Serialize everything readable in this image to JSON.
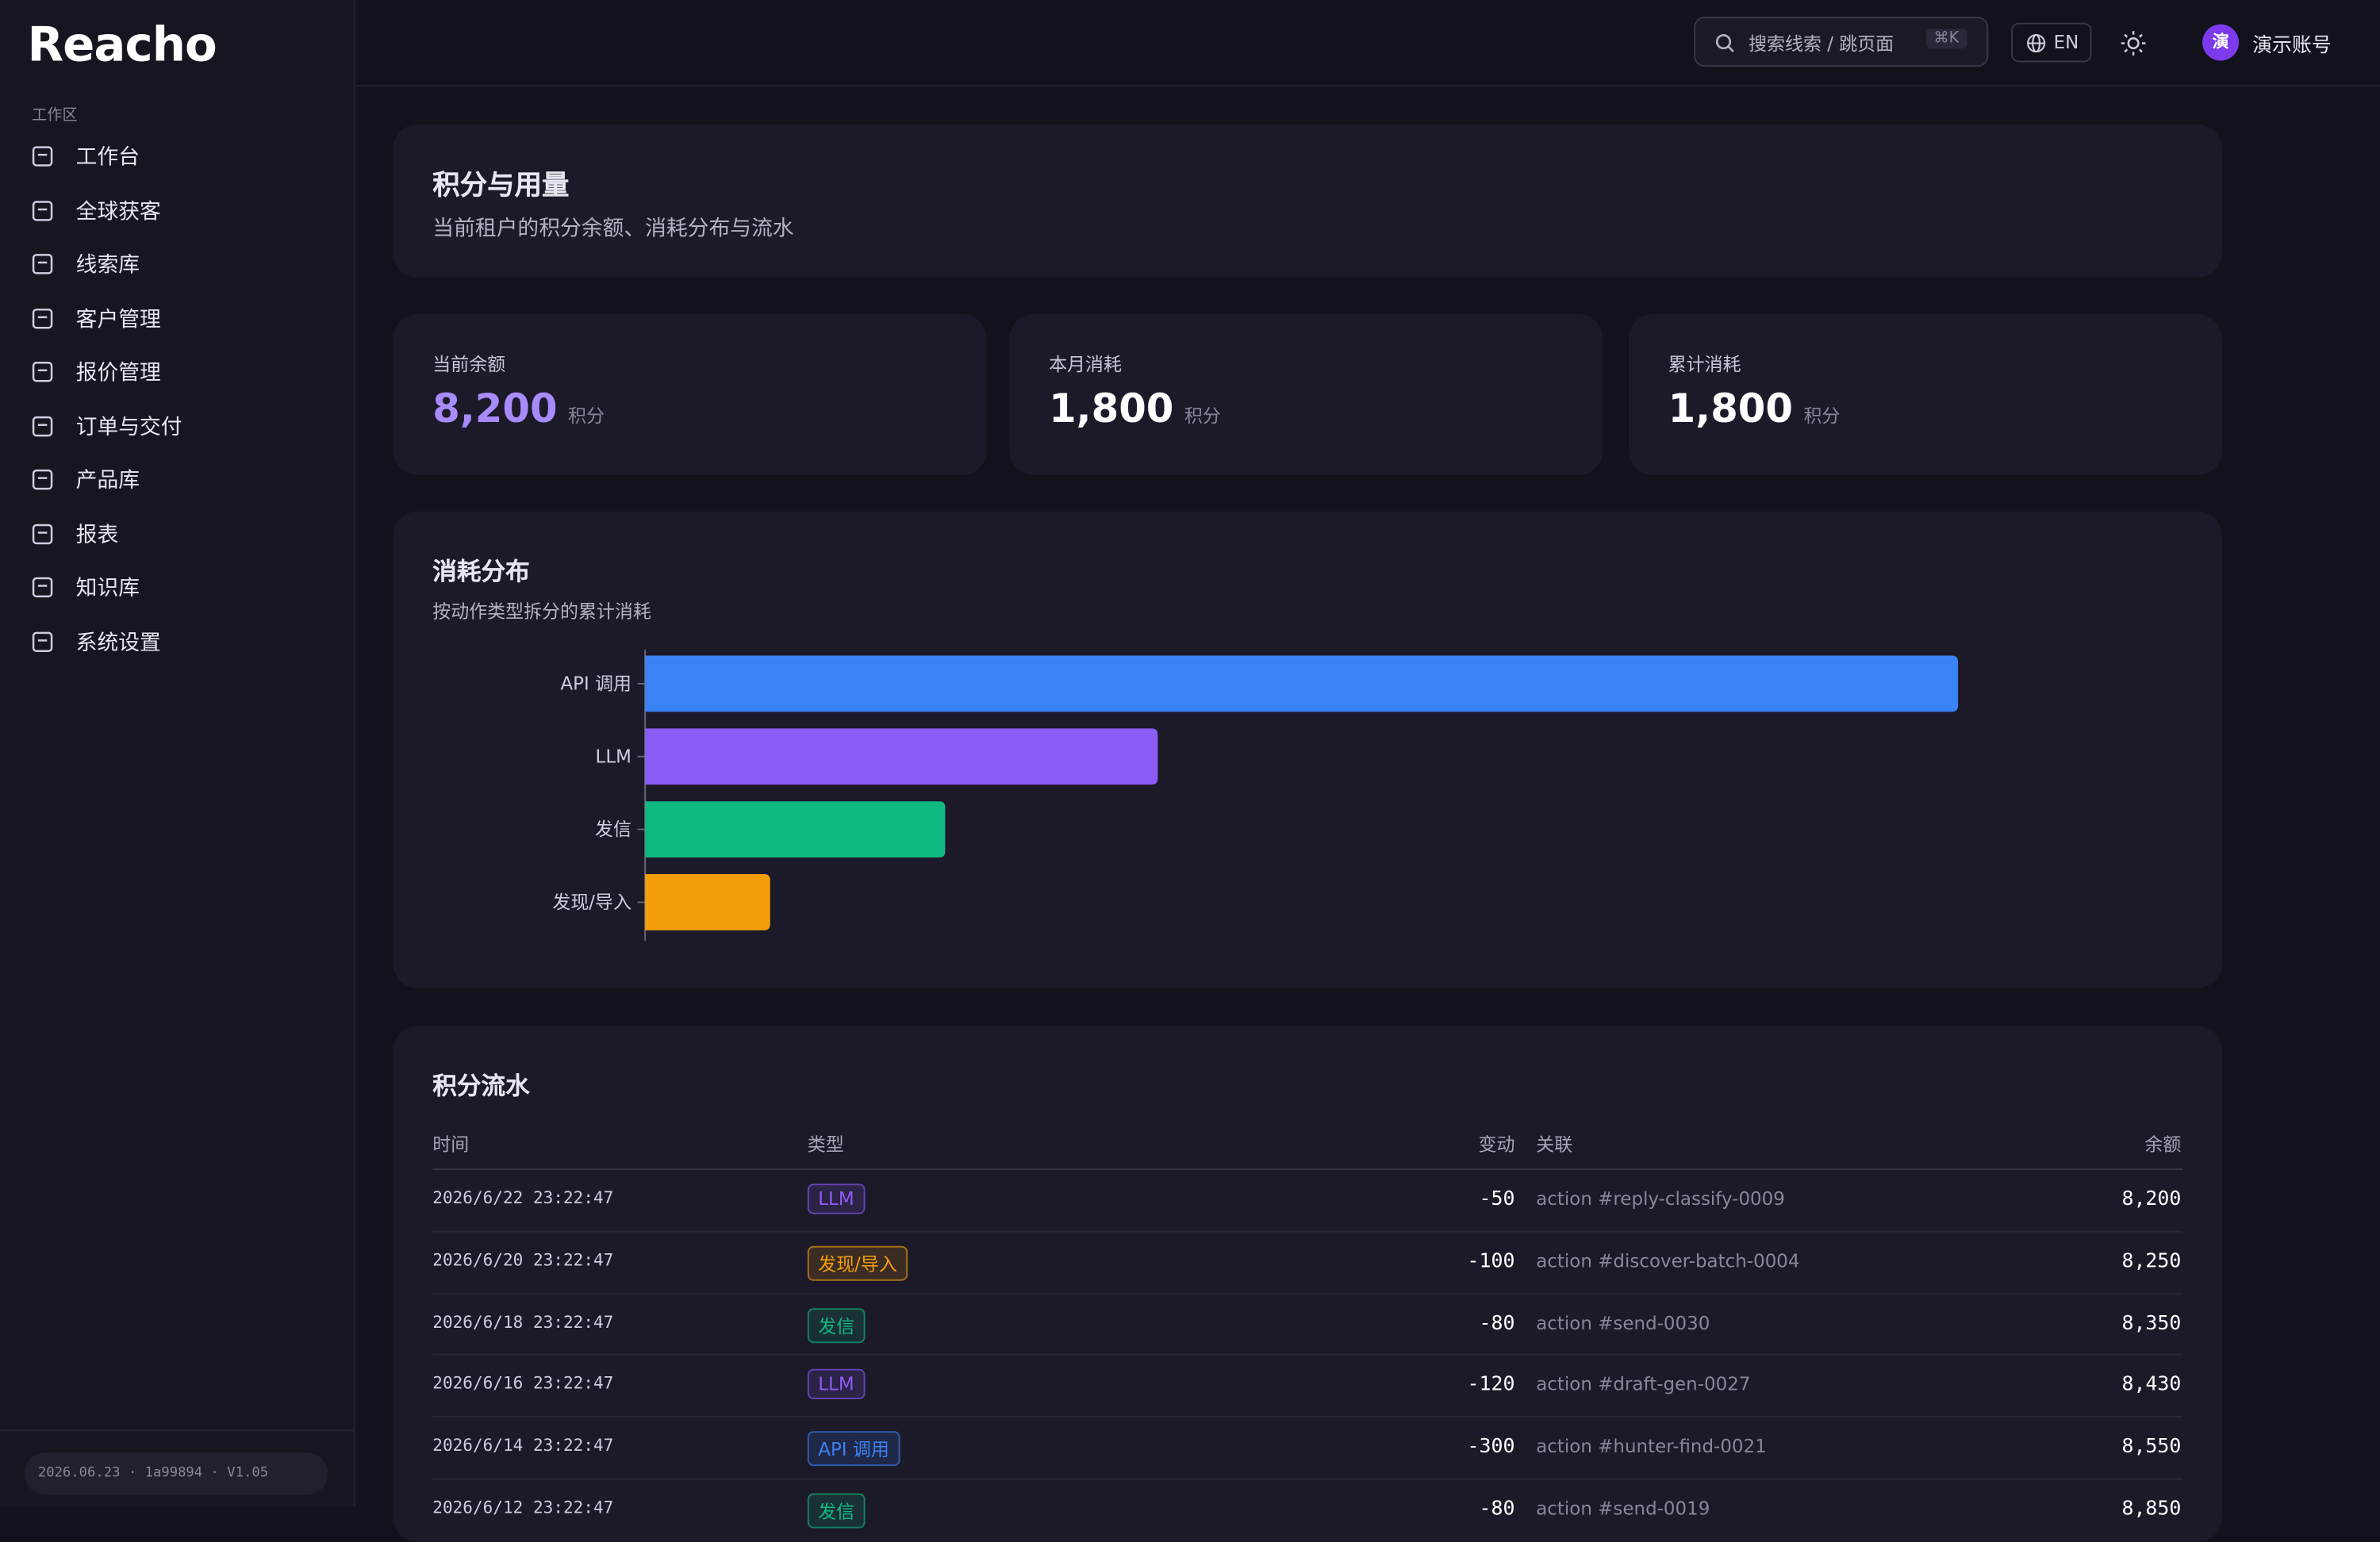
{
  "sidebar": {
    "logo": "Reacho",
    "section": "工作区",
    "nav": [
      "工作台",
      "全球获客",
      "线索库",
      "客户管理",
      "报价管理",
      "订单与交付",
      "产品库",
      "报表",
      "知识库",
      "系统设置"
    ],
    "version": "2026.06.23 · 1a99894 · V1.05"
  },
  "header": {
    "search": "搜索线索 / 跳页面",
    "shortcut": "⌘K",
    "language": "EN",
    "avatar": "演",
    "account": "演示账号"
  },
  "page": {
    "title": "积分与用量",
    "subtitle": "当前租户的积分余额、消耗分布与流水"
  },
  "stats": [
    {
      "label": "当前余额",
      "value": "8,200",
      "unit": "积分"
    },
    {
      "label": "本月消耗",
      "value": "1,800",
      "unit": "积分"
    },
    {
      "label": "累计消耗",
      "value": "1,800",
      "unit": "积分"
    }
  ],
  "chart_data": {
    "type": "bar",
    "orientation": "horizontal",
    "title": "消耗分布",
    "subtitle": "按动作类型拆分的累计消耗",
    "categories": [
      "API 调用",
      "LLM",
      "发信",
      "发现/导入"
    ],
    "values": [
      1050,
      410,
      240,
      100
    ],
    "colors": [
      "#3b82f6",
      "#8b5cf6",
      "#10b981",
      "#f59e0b"
    ]
  },
  "table": {
    "title": "积分流水",
    "columns": [
      "时间",
      "类型",
      "变动",
      "关联",
      "余额"
    ],
    "rows": [
      [
        "2026/6/22 23:22:47",
        "LLM",
        "-50",
        "action #reply-classify-0009",
        "8,200"
      ],
      [
        "2026/6/20 23:22:47",
        "发现/导入",
        "-100",
        "action #discover-batch-0004",
        "8,250"
      ],
      [
        "2026/6/18 23:22:47",
        "发信",
        "-80",
        "action #send-0030",
        "8,350"
      ],
      [
        "2026/6/16 23:22:47",
        "LLM",
        "-120",
        "action #draft-gen-0027",
        "8,430"
      ],
      [
        "2026/6/14 23:22:47",
        "API 调用",
        "-300",
        "action #hunter-find-0021",
        "8,550"
      ],
      [
        "2026/6/12 23:22:47",
        "发信",
        "-80",
        "action #send-0019",
        "8,850"
      ]
    ]
  }
}
